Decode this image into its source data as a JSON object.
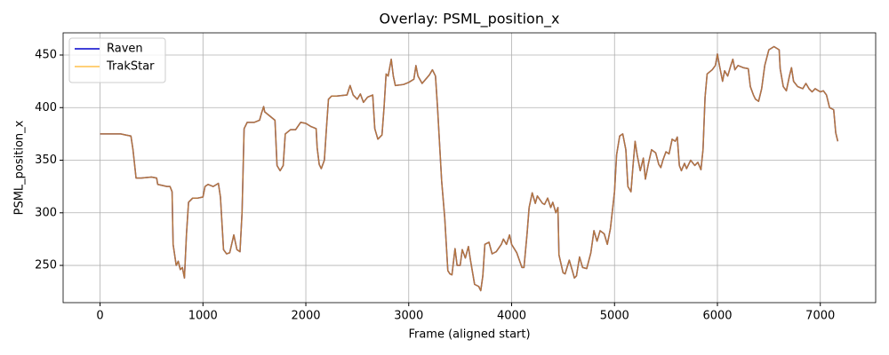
{
  "chart_data": {
    "type": "line",
    "title": "Overlay: PSML_position_x",
    "x_label": "Frame (aligned start)",
    "y_label": "PSML_position_x",
    "xlim": [
      -359,
      7538
    ],
    "ylim": [
      214.6,
      471.1
    ],
    "xticks": [
      0,
      1000,
      2000,
      3000,
      4000,
      5000,
      6000,
      7000
    ],
    "yticks": [
      250,
      300,
      350,
      400,
      450
    ],
    "grid": true,
    "legend": "upper left",
    "x": [
      0,
      100,
      200,
      250,
      300,
      320,
      350,
      400,
      500,
      550,
      560,
      650,
      680,
      700,
      710,
      740,
      760,
      780,
      800,
      820,
      840,
      860,
      900,
      950,
      1000,
      1020,
      1050,
      1100,
      1150,
      1170,
      1200,
      1230,
      1260,
      1300,
      1330,
      1360,
      1380,
      1400,
      1430,
      1500,
      1550,
      1570,
      1590,
      1600,
      1650,
      1700,
      1720,
      1750,
      1780,
      1800,
      1850,
      1900,
      1950,
      2000,
      2050,
      2100,
      2110,
      2130,
      2150,
      2180,
      2200,
      2220,
      2250,
      2300,
      2400,
      2430,
      2460,
      2500,
      2530,
      2560,
      2600,
      2650,
      2670,
      2700,
      2740,
      2760,
      2780,
      2800,
      2830,
      2850,
      2870,
      2950,
      3000,
      3050,
      3070,
      3090,
      3130,
      3200,
      3230,
      3260,
      3280,
      3320,
      3350,
      3380,
      3400,
      3420,
      3450,
      3470,
      3500,
      3520,
      3550,
      3580,
      3600,
      3640,
      3680,
      3700,
      3720,
      3740,
      3780,
      3810,
      3850,
      3900,
      3920,
      3950,
      3980,
      4000,
      4050,
      4100,
      4120,
      4150,
      4170,
      4200,
      4230,
      4250,
      4300,
      4320,
      4350,
      4380,
      4400,
      4430,
      4450,
      4460,
      4500,
      4520,
      4560,
      4590,
      4610,
      4630,
      4660,
      4690,
      4730,
      4770,
      4800,
      4830,
      4860,
      4900,
      4930,
      4960,
      5000,
      5020,
      5050,
      5080,
      5110,
      5130,
      5160,
      5180,
      5200,
      5220,
      5250,
      5280,
      5300,
      5330,
      5360,
      5400,
      5430,
      5450,
      5470,
      5500,
      5530,
      5560,
      5590,
      5610,
      5630,
      5650,
      5680,
      5700,
      5740,
      5780,
      5810,
      5840,
      5860,
      5880,
      5900,
      5950,
      5980,
      6000,
      6020,
      6050,
      6070,
      6100,
      6130,
      6150,
      6170,
      6200,
      6250,
      6300,
      6320,
      6350,
      6370,
      6400,
      6430,
      6460,
      6500,
      6550,
      6600,
      6610,
      6640,
      6670,
      6700,
      6720,
      6740,
      6780,
      6830,
      6860,
      6890,
      6920,
      6950,
      7000,
      7030,
      7060,
      7090,
      7130,
      7150,
      7170
    ],
    "series": [
      {
        "name": "Raven",
        "color": "#0000cc",
        "values": [
          375,
          375,
          375,
          374,
          373,
          360,
          333,
          333,
          334,
          333,
          327,
          325,
          325,
          320,
          270,
          250,
          254,
          246,
          248,
          238,
          280,
          310,
          314,
          314,
          315,
          325,
          327,
          325,
          328,
          315,
          265,
          261,
          262,
          279,
          265,
          263,
          300,
          380,
          386,
          386,
          388,
          395,
          401,
          396,
          392,
          388,
          345,
          340,
          345,
          375,
          379,
          379,
          386,
          385,
          382,
          380,
          362,
          346,
          342,
          350,
          380,
          408,
          411,
          411,
          412,
          421,
          412,
          408,
          413,
          405,
          410,
          412,
          380,
          370,
          374,
          400,
          432,
          430,
          446,
          430,
          421,
          422,
          424,
          427,
          440,
          430,
          423,
          431,
          436,
          430,
          400,
          330,
          295,
          245,
          242,
          241,
          266,
          250,
          250,
          265,
          257,
          268,
          255,
          232,
          230,
          226,
          240,
          270,
          272,
          261,
          263,
          270,
          275,
          270,
          279,
          270,
          262,
          248,
          248,
          280,
          305,
          319,
          309,
          316,
          309,
          308,
          314,
          305,
          310,
          300,
          305,
          260,
          243,
          242,
          255,
          245,
          238,
          240,
          258,
          248,
          247,
          262,
          283,
          273,
          283,
          280,
          270,
          285,
          320,
          355,
          373,
          375,
          360,
          325,
          320,
          345,
          368,
          355,
          340,
          352,
          332,
          347,
          360,
          357,
          346,
          343,
          350,
          358,
          356,
          370,
          368,
          372,
          345,
          340,
          347,
          342,
          350,
          345,
          348,
          341,
          360,
          410,
          432,
          436,
          440,
          451,
          440,
          425,
          435,
          430,
          440,
          446,
          436,
          440,
          438,
          437,
          420,
          412,
          408,
          406,
          418,
          440,
          455,
          458,
          455,
          437,
          420,
          416,
          430,
          438,
          425,
          420,
          418,
          423,
          418,
          415,
          418,
          415,
          416,
          412,
          400,
          398,
          376,
          368
        ]
      },
      {
        "name": "TrakStar",
        "color": "#ffa500",
        "values": [
          375,
          375,
          375,
          374,
          373,
          360,
          333,
          333,
          334,
          333,
          327,
          325,
          325,
          320,
          270,
          250,
          254,
          246,
          248,
          238,
          280,
          310,
          314,
          314,
          315,
          325,
          327,
          325,
          328,
          315,
          265,
          261,
          262,
          279,
          265,
          263,
          300,
          380,
          386,
          386,
          388,
          395,
          401,
          396,
          392,
          388,
          345,
          340,
          345,
          375,
          379,
          379,
          386,
          385,
          382,
          380,
          362,
          346,
          342,
          350,
          380,
          408,
          411,
          411,
          412,
          421,
          412,
          408,
          413,
          405,
          410,
          412,
          380,
          370,
          374,
          400,
          432,
          430,
          446,
          430,
          421,
          422,
          424,
          427,
          440,
          430,
          423,
          431,
          436,
          430,
          400,
          330,
          295,
          245,
          242,
          241,
          266,
          250,
          250,
          265,
          257,
          268,
          255,
          232,
          230,
          226,
          240,
          270,
          272,
          261,
          263,
          270,
          275,
          270,
          279,
          270,
          262,
          248,
          248,
          280,
          305,
          319,
          309,
          316,
          309,
          308,
          314,
          305,
          310,
          300,
          305,
          260,
          243,
          242,
          255,
          245,
          238,
          240,
          258,
          248,
          247,
          262,
          283,
          273,
          283,
          280,
          270,
          285,
          320,
          355,
          373,
          375,
          360,
          325,
          320,
          345,
          368,
          355,
          340,
          352,
          332,
          347,
          360,
          357,
          346,
          343,
          350,
          358,
          356,
          370,
          368,
          372,
          345,
          340,
          347,
          342,
          350,
          345,
          348,
          341,
          360,
          410,
          432,
          436,
          440,
          451,
          440,
          425,
          435,
          430,
          440,
          446,
          436,
          440,
          438,
          437,
          420,
          412,
          408,
          406,
          418,
          440,
          455,
          458,
          455,
          437,
          420,
          416,
          430,
          438,
          425,
          420,
          418,
          423,
          418,
          415,
          418,
          415,
          416,
          412,
          400,
          398,
          376,
          368
        ]
      }
    ]
  }
}
